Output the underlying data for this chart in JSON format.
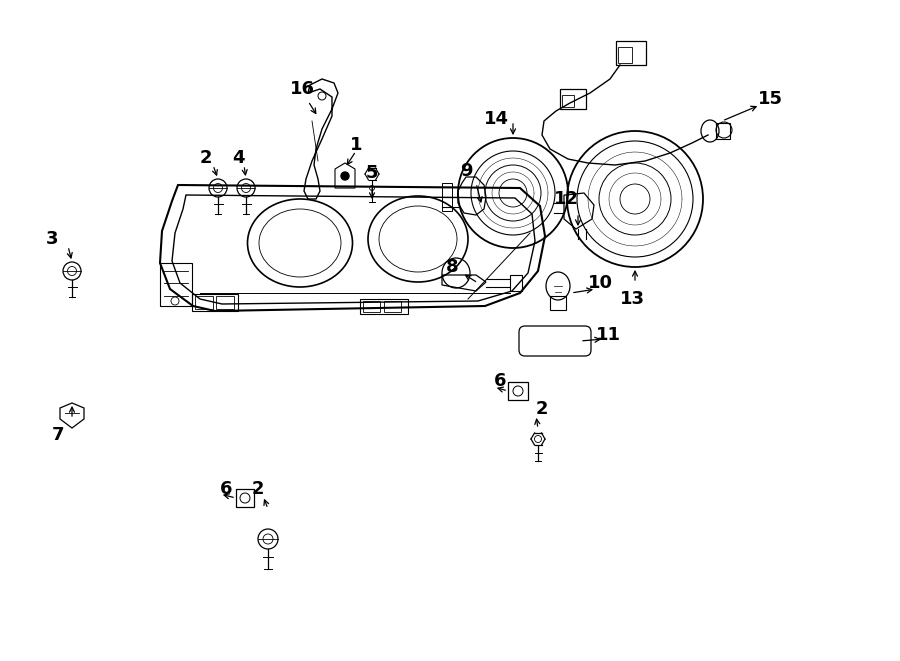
{
  "bg_color": "#ffffff",
  "lc": "#000000",
  "figsize": [
    9.0,
    6.61
  ],
  "dpi": 100,
  "lw": 1.0
}
